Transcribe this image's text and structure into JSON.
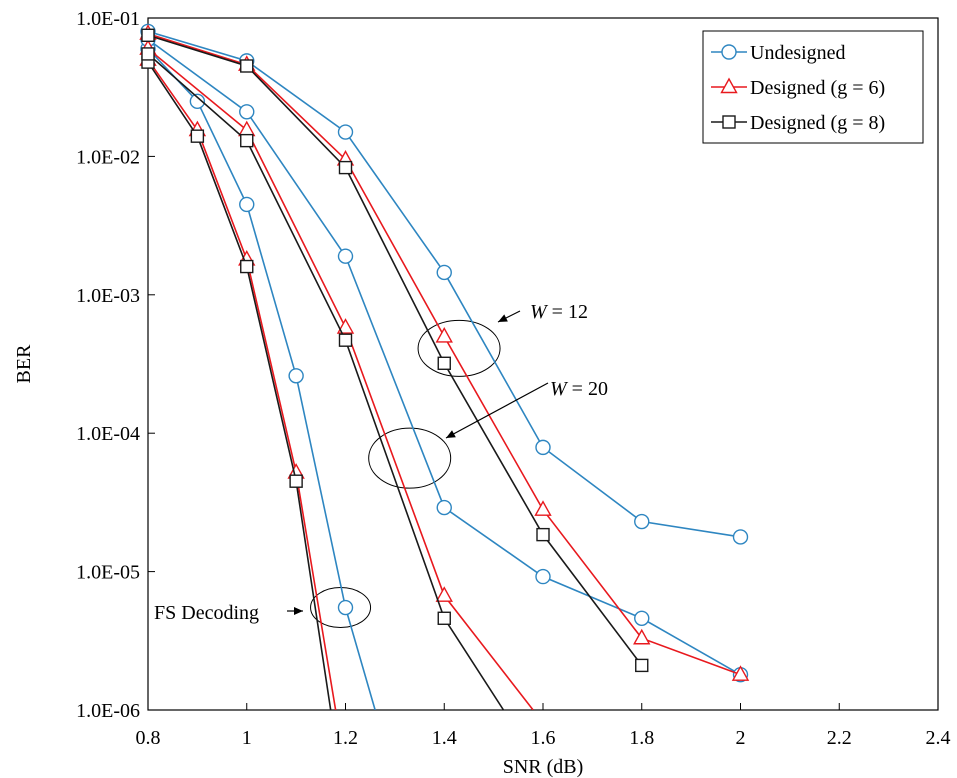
{
  "chart_data": {
    "type": "line",
    "title": "",
    "xlabel": "SNR (dB)",
    "ylabel": "BER",
    "xlim": [
      0.8,
      2.4
    ],
    "ylim": [
      1e-06,
      0.1
    ],
    "yscale": "log",
    "grid": false,
    "legend_position": "top-right",
    "x_ticks": [
      "0.8",
      "1",
      "1.2",
      "1.4",
      "1.6",
      "1.8",
      "2",
      "2.2",
      "2.4"
    ],
    "y_ticks": [
      "1.0E-01",
      "1.0E-02",
      "1.0E-03",
      "1.0E-04",
      "1.0E-05",
      "1.0E-06"
    ],
    "legend": [
      {
        "label": "Undesigned",
        "color": "#2E86C1",
        "marker": "circle"
      },
      {
        "label": "Designed (g = 6)",
        "color": "#E8191E",
        "marker": "triangle"
      },
      {
        "label": "Designed (g = 8)",
        "color": "#1A1A1A",
        "marker": "square"
      }
    ],
    "series": [
      {
        "group": "FS Decoding",
        "style": 0,
        "x": [
          0.8,
          0.9,
          1.0,
          1.1,
          1.2,
          1.26
        ],
        "y": [
          0.06,
          0.025,
          0.0045,
          0.00026,
          5.5e-06,
          1e-06
        ]
      },
      {
        "group": "FS Decoding",
        "style": 1,
        "x": [
          0.8,
          0.9,
          1.0,
          1.1,
          1.18
        ],
        "y": [
          0.05,
          0.0155,
          0.0018,
          5.2e-05,
          1e-06
        ]
      },
      {
        "group": "FS Decoding",
        "style": 2,
        "x": [
          0.8,
          0.9,
          1.0,
          1.1,
          1.17
        ],
        "y": [
          0.048,
          0.014,
          0.0016,
          4.5e-05,
          1e-06
        ]
      },
      {
        "group": "W = 20",
        "style": 0,
        "x": [
          0.8,
          1.0,
          1.2,
          1.4,
          1.6,
          1.8,
          2.0
        ],
        "y": [
          0.07,
          0.021,
          0.0019,
          2.9e-05,
          9.2e-06,
          4.6e-06,
          1.8e-06
        ]
      },
      {
        "group": "W = 20",
        "style": 1,
        "x": [
          0.8,
          1.0,
          1.2,
          1.4,
          1.58
        ],
        "y": [
          0.06,
          0.0155,
          0.00058,
          6.7e-06,
          1e-06
        ]
      },
      {
        "group": "W = 20",
        "style": 2,
        "x": [
          0.8,
          1.0,
          1.2,
          1.4,
          1.52
        ],
        "y": [
          0.055,
          0.013,
          0.00047,
          4.6e-06,
          1e-06
        ]
      },
      {
        "group": "W = 12",
        "style": 0,
        "x": [
          0.8,
          1.0,
          1.2,
          1.4,
          1.6,
          1.8,
          2.0
        ],
        "y": [
          0.08,
          0.049,
          0.015,
          0.00145,
          7.9e-05,
          2.3e-05,
          1.78e-05
        ]
      },
      {
        "group": "W = 12",
        "style": 1,
        "x": [
          0.8,
          1.0,
          1.2,
          1.4,
          1.6,
          1.8,
          2.0
        ],
        "y": [
          0.077,
          0.046,
          0.0095,
          0.0005,
          2.8e-05,
          3.3e-06,
          1.8e-06
        ]
      },
      {
        "group": "W = 12",
        "style": 2,
        "x": [
          0.8,
          1.0,
          1.2,
          1.4,
          1.6,
          1.8
        ],
        "y": [
          0.075,
          0.045,
          0.0083,
          0.00032,
          1.85e-05,
          2.1e-06
        ]
      }
    ],
    "annotations": [
      {
        "text": "W = 12",
        "italic_part": "W",
        "rest": " = 12",
        "target": {
          "x": 1.43,
          "y": 0.00041
        }
      },
      {
        "text": "W = 20",
        "italic_part": "W",
        "rest": " = 20",
        "target": {
          "x": 1.33,
          "y": 6.6e-05
        }
      },
      {
        "text": "FS Decoding",
        "target": {
          "x": 1.19,
          "y": 5.5e-06
        }
      }
    ]
  }
}
